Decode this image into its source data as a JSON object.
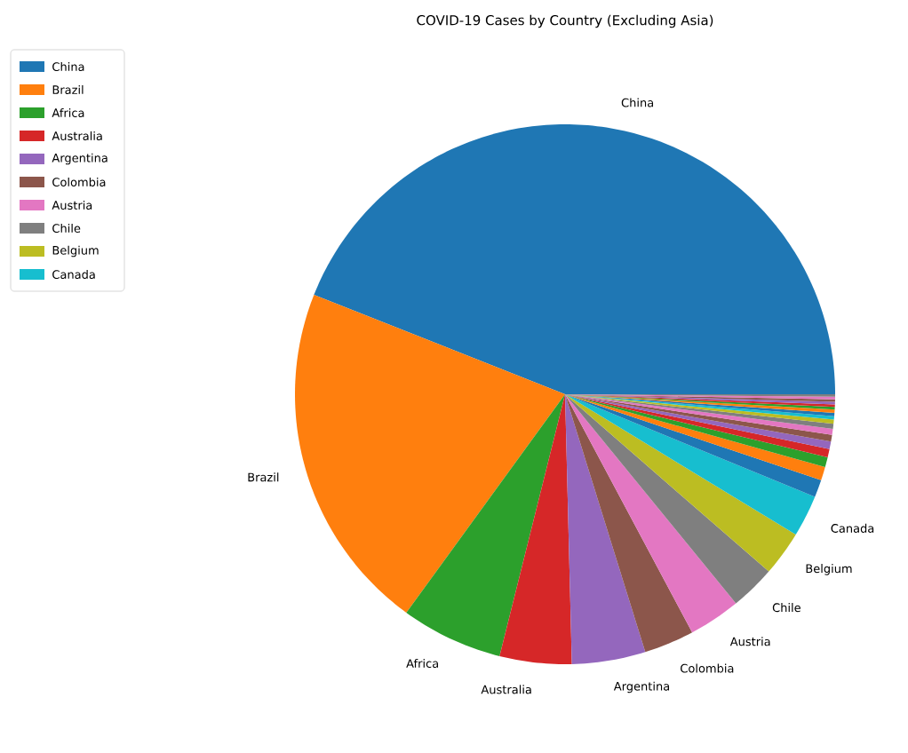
{
  "chart_data": {
    "type": "pie",
    "title": "COVID-19 Cases by Country (Excluding Asia)",
    "categories": [
      "China",
      "Brazil",
      "Africa",
      "Australia",
      "Argentina",
      "Colombia",
      "Austria",
      "Chile",
      "Belgium",
      "Canada",
      null,
      null,
      null,
      null,
      null,
      null,
      null,
      null,
      null,
      null,
      null,
      null,
      null,
      null,
      null,
      null,
      null,
      null
    ],
    "values": [
      44,
      21,
      6.1,
      4.3,
      4.4,
      3.0,
      3.1,
      2.7,
      2.7,
      2.5,
      1.05,
      0.8,
      0.6,
      0.5,
      0.45,
      0.4,
      0.35,
      0.3,
      0.25,
      0.2,
      0.2,
      0.2,
      0.15,
      0.15,
      0.15,
      0.15,
      0.15,
      0.15
    ],
    "colors": [
      "#1f77b4",
      "#ff7f0e",
      "#2ca02c",
      "#d62728",
      "#9467bd",
      "#8c564b",
      "#e377c2",
      "#7f7f7f",
      "#bcbd22",
      "#17becf",
      "#1f77b4",
      "#ff7f0e",
      "#2ca02c",
      "#d62728",
      "#9467bd",
      "#8c564b",
      "#e377c2",
      "#7f7f7f",
      "#bcbd22",
      "#17becf",
      "#1f77b4",
      "#ff7f0e",
      "#2ca02c",
      "#d62728",
      "#9467bd",
      "#8c564b",
      "#e377c2",
      "#7f7f7f"
    ],
    "legend": "top left"
  }
}
